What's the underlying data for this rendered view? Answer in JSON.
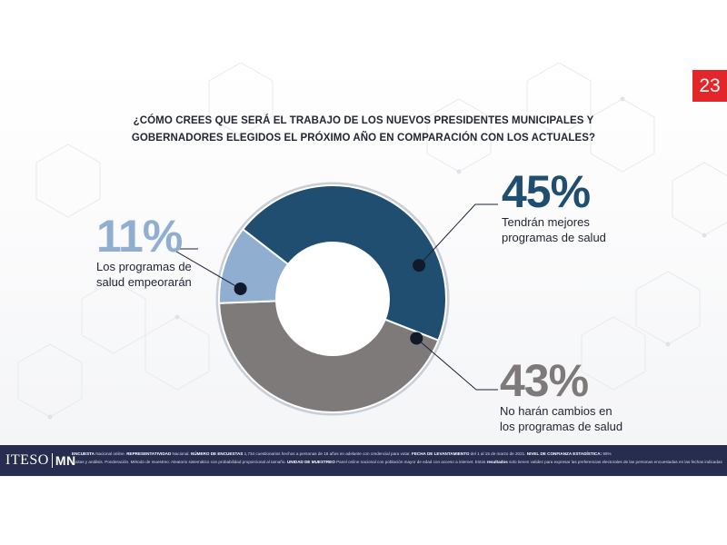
{
  "page_number": "23",
  "question": {
    "line1": "¿CÓMO CREES QUE SERÁ EL TRABAJO DE LOS NUEVOS PRESIDENTES MUNICIPALES Y",
    "line2": "GOBERNADORES ELEGIDOS EL PRÓXIMO AÑO EN COMPARACIÓN CON LOS ACTUALES?"
  },
  "chart_data": {
    "type": "pie",
    "variant": "donut",
    "title": "¿CÓMO CREES QUE SERÁ EL TRABAJO DE LOS NUEVOS PRESIDENTES MUNICIPALES Y GOBERNADORES ELEGIDOS EL PRÓXIMO AÑO EN COMPARACIÓN CON LOS ACTUALES?",
    "slices": [
      {
        "value": 45,
        "pct_label": "45%",
        "label_line1": "Tendrán mejores",
        "label_line2": "programas de salud",
        "color": "#1f4e70"
      },
      {
        "value": 43,
        "pct_label": "43%",
        "label_line1": "No harán cambios en",
        "label_line2": "los programas de salud",
        "color": "#7e7a7a"
      },
      {
        "value": 11,
        "pct_label": "11%",
        "label_line1": "Los programas de",
        "label_line2": "salud empeorarán",
        "color": "#90afd0"
      }
    ]
  },
  "footer": {
    "logo_left": "ITESO",
    "logo_right": "MN",
    "line1": [
      {
        "k": "ENCUESTA",
        "v": " Nacional online.   "
      },
      {
        "k": "REPRESENTATIVIDAD",
        "v": "  Nacional.   "
      },
      {
        "k": "NÚMERO DE ENCUESTAS",
        "v": "  1,734 cuestionarios hechos a personas de 18 años en adelante con credencial para votar.   "
      },
      {
        "k": "FECHA DE LEVANTAMIENTO",
        "v": "  del 1 al 15 de marzo de 2021.   "
      },
      {
        "k": "NIVEL DE CONFIANZA ESTADÍSTICA:",
        "v": "  95%"
      }
    ],
    "line2": [
      {
        "k": "",
        "v": "cuotas y análisis. Ponderación. Método de muestreo: Aleatorio sistemático con probabilidad proporcional al tamaño.   "
      },
      {
        "k": "UNIDAD DE MUESTREO",
        "v": "  Panel online nacional con población mayor de edad con acceso a internet.   Estos "
      },
      {
        "k": "resultados",
        "v": " solo tienen validez para expresar las preferencias electorales de las personas encuestadas en las fechas indicadas en el ejercicio."
      }
    ]
  }
}
